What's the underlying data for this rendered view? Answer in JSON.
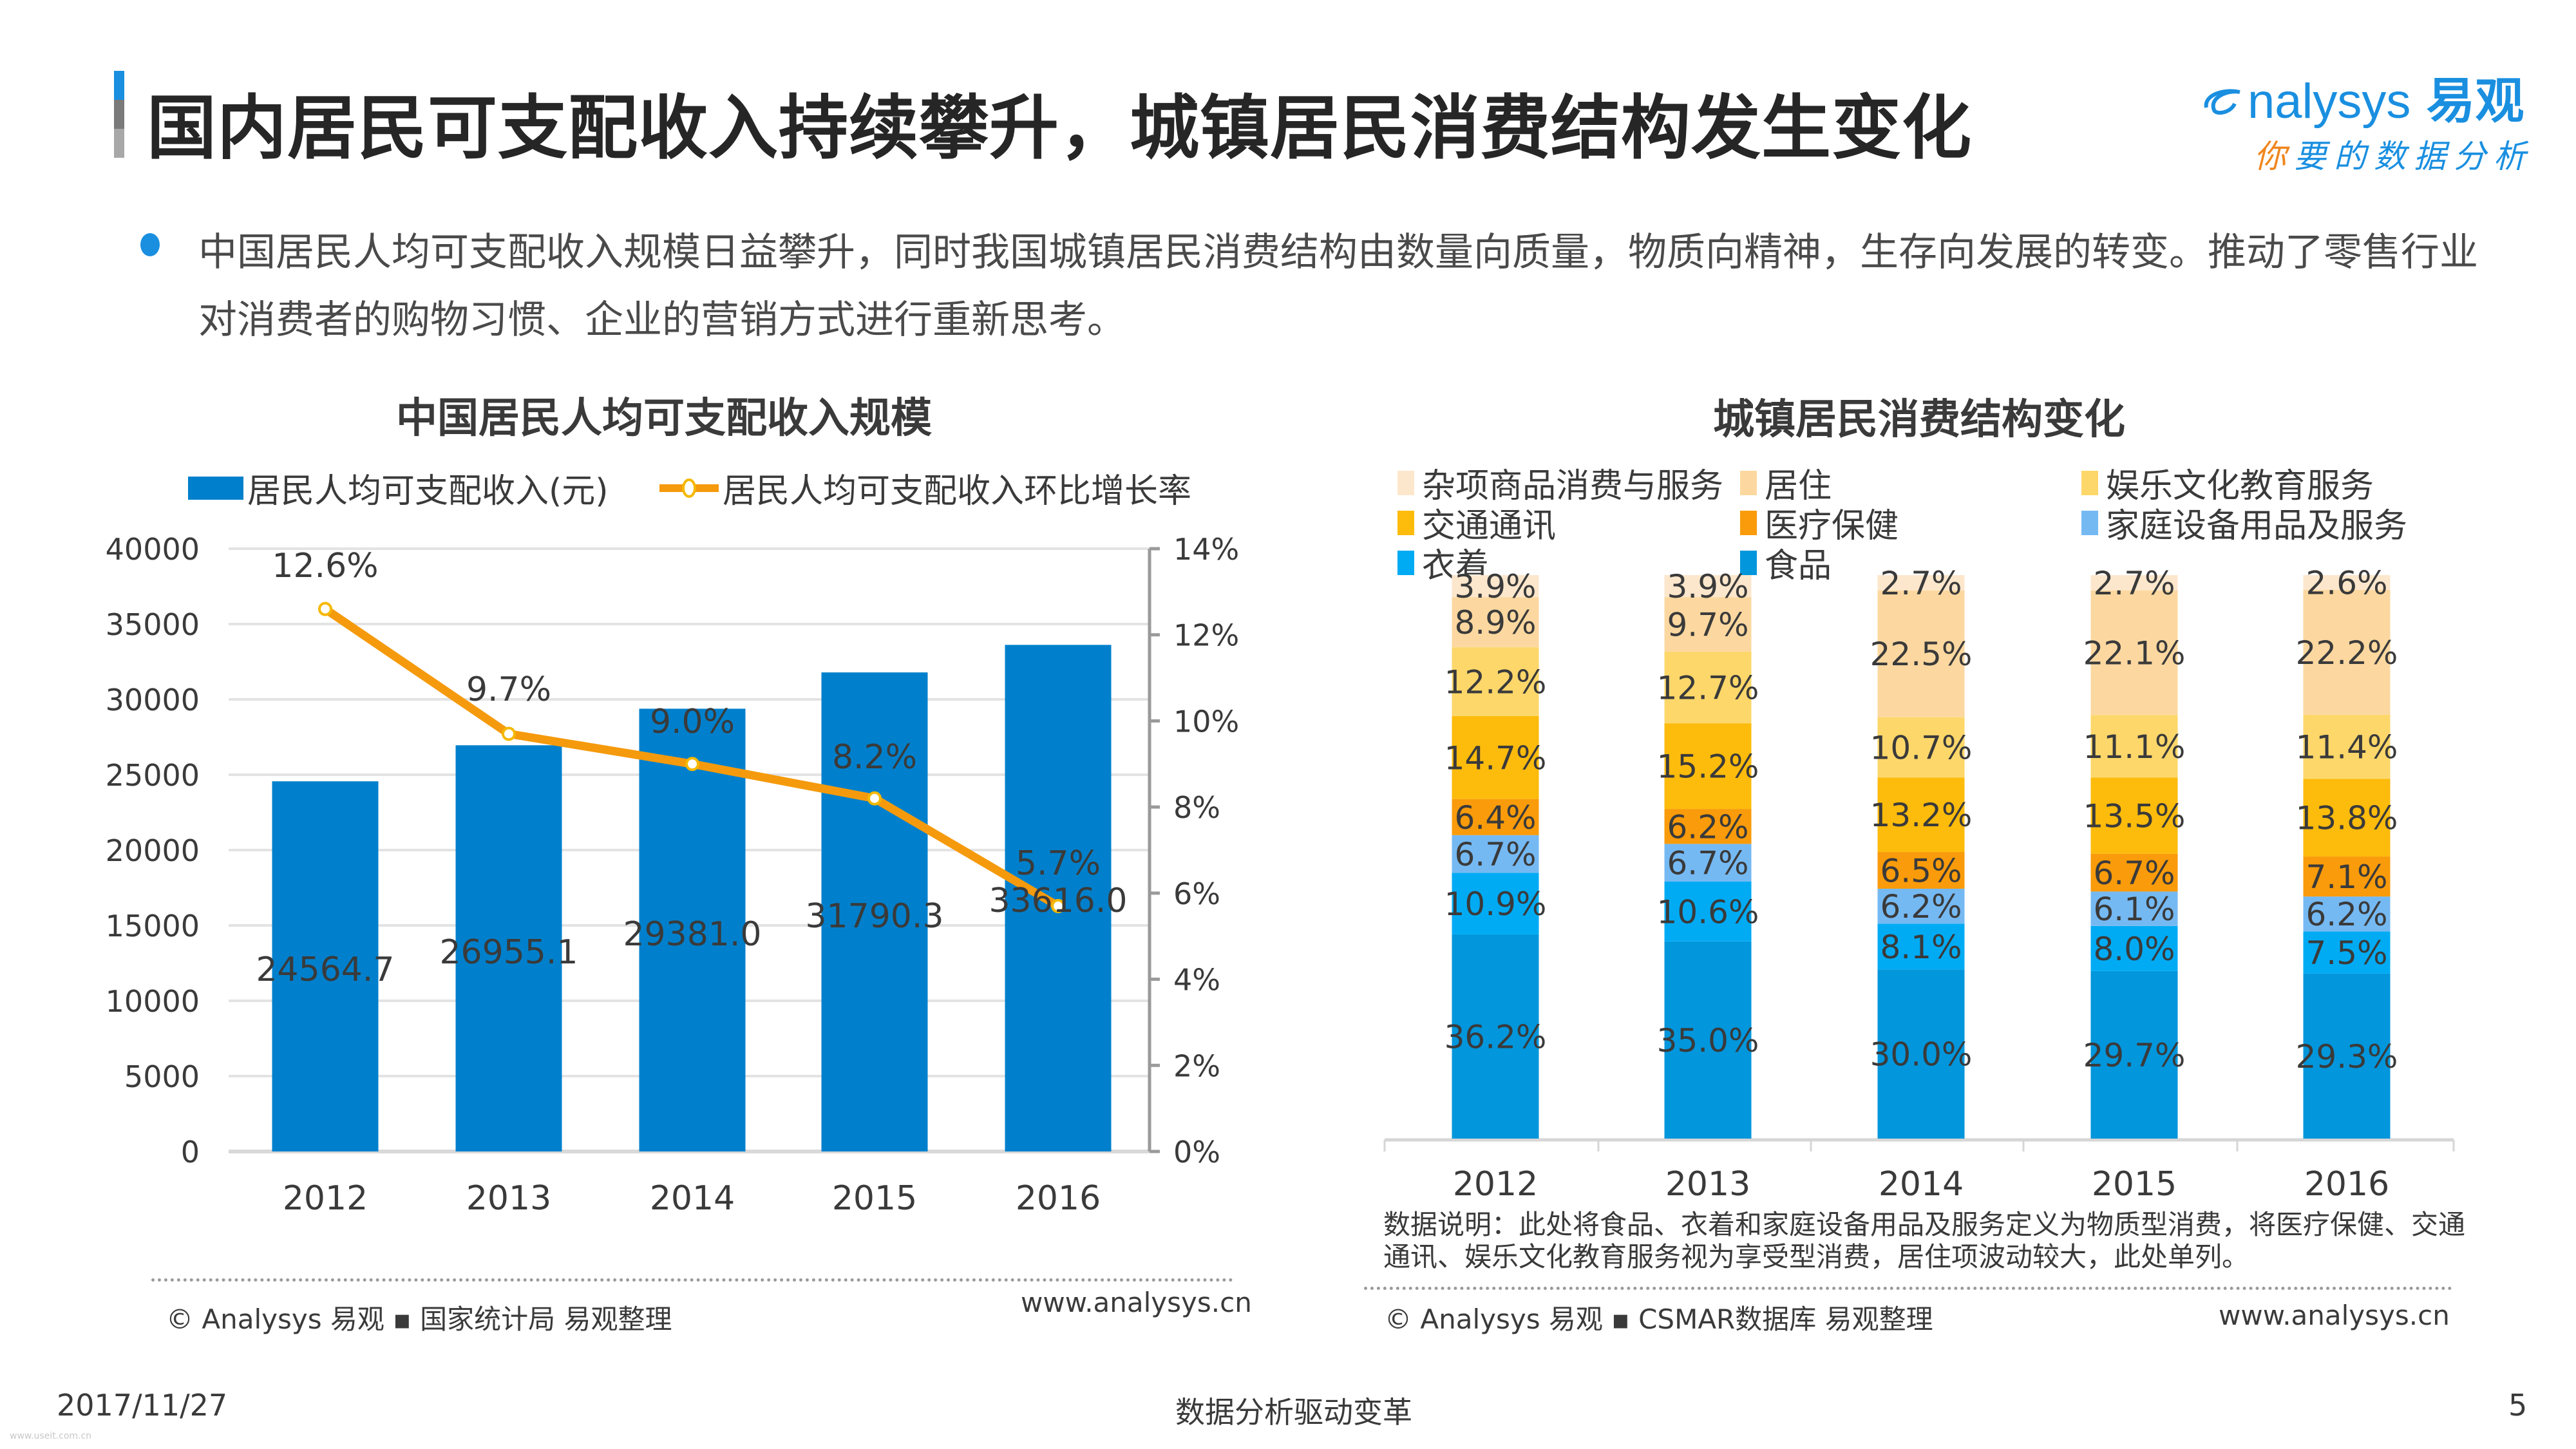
{
  "header": {
    "title": "国内居民可支配收入持续攀升，城镇居民消费结构发生变化",
    "accent_colors": [
      "#1a8fe0",
      "#7a7a7a",
      "#a8a8a8"
    ],
    "logo": {
      "brand_latin": "nalysys",
      "brand_cn": "易观",
      "slogan_first": "你",
      "slogan_rest": "要的数据分析",
      "brand_color": "#1a8fe0",
      "accent_color": "#f0861d"
    }
  },
  "intro": {
    "bullet_color": "#1a8fe0",
    "text": "中国居民人均可支配收入规模日益攀升，同时我国城镇居民消费结构由数量向质量，物质向精神，生存向发展的转变。推动了零售行业对消费者的购物习惯、企业的营销方式进行重新思考。"
  },
  "chart_data": [
    {
      "type": "bar",
      "title": "中国居民人均可支配收入规模",
      "categories": [
        "2012",
        "2013",
        "2014",
        "2015",
        "2016"
      ],
      "series": [
        {
          "name": "居民人均可支配收入(元)",
          "kind": "bar",
          "axis": "left",
          "color": "#0080cc",
          "values": [
            24564.7,
            26955.1,
            29381.0,
            31790.3,
            33616.0
          ],
          "labels": [
            "24564.7",
            "26955.1",
            "29381.0",
            "31790.3",
            "33616.0"
          ]
        },
        {
          "name": "居民人均可支配收入环比增长率",
          "kind": "line",
          "axis": "right",
          "color": "#f59a0c",
          "values": [
            12.6,
            9.7,
            9.0,
            8.2,
            5.7
          ],
          "labels": [
            "12.6%",
            "9.7%",
            "9.0%",
            "8.2%",
            "5.7%"
          ]
        }
      ],
      "y_left": {
        "min": 0,
        "max": 40000,
        "ticks": [
          "0",
          "5000",
          "10000",
          "15000",
          "20000",
          "25000",
          "30000",
          "35000",
          "40000"
        ]
      },
      "y_right": {
        "min": 0,
        "max": 14,
        "ticks": [
          "0%",
          "2%",
          "4%",
          "6%",
          "8%",
          "10%",
          "12%",
          "14%"
        ]
      },
      "grid": true,
      "legend_position": "top",
      "source": "© Analysys 易观 ▪ 国家统计局  易观整理",
      "url": "www.analysys.cn"
    },
    {
      "type": "bar",
      "stacked": "percent",
      "title": "城镇居民消费结构变化",
      "categories": [
        "2012",
        "2013",
        "2014",
        "2015",
        "2016"
      ],
      "series": [
        {
          "name": "食品",
          "color": "#0296dc",
          "values": [
            36.2,
            35.0,
            30.0,
            29.7,
            29.3
          ]
        },
        {
          "name": "衣着",
          "color": "#00abf4",
          "values": [
            10.9,
            10.6,
            8.1,
            8.0,
            7.5
          ]
        },
        {
          "name": "家庭设备用品及服务",
          "color": "#75b9f3",
          "values": [
            6.7,
            6.7,
            6.2,
            6.1,
            6.2
          ]
        },
        {
          "name": "医疗保健",
          "color": "#f99b0a",
          "values": [
            6.4,
            6.2,
            6.5,
            6.7,
            7.1
          ]
        },
        {
          "name": "交通通讯",
          "color": "#fdbb0c",
          "values": [
            14.7,
            15.2,
            13.2,
            13.5,
            13.8
          ]
        },
        {
          "name": "娱乐文化教育服务",
          "color": "#fdd76a",
          "values": [
            12.2,
            12.7,
            10.7,
            11.1,
            11.4
          ]
        },
        {
          "name": "居住",
          "color": "#fcd8a0",
          "values": [
            8.9,
            9.7,
            22.5,
            22.1,
            22.2
          ]
        },
        {
          "name": "杂项商品消费与服务",
          "color": "#fde7cc",
          "values": [
            3.9,
            3.9,
            2.7,
            2.7,
            2.6
          ]
        }
      ],
      "legend_order": [
        "杂项商品消费与服务",
        "居住",
        "娱乐文化教育服务",
        "交通通讯",
        "医疗保健",
        "家庭设备用品及服务",
        "衣着",
        "食品"
      ],
      "legend_position": "top",
      "note": "数据说明：此处将食品、衣着和家庭设备用品及服务定义为物质型消费，将医疗保健、交通通讯、娱乐文化教育服务视为享受型消费，居住项波动较大，此处单列。",
      "source": "© Analysys 易观 ▪ CSMAR数据库  易观整理",
      "url": "www.analysys.cn"
    }
  ],
  "footer": {
    "date": "2017/11/27",
    "slogan": "数据分析驱动变革",
    "page_number": "5",
    "watermark": "www.useit.com.cn"
  }
}
